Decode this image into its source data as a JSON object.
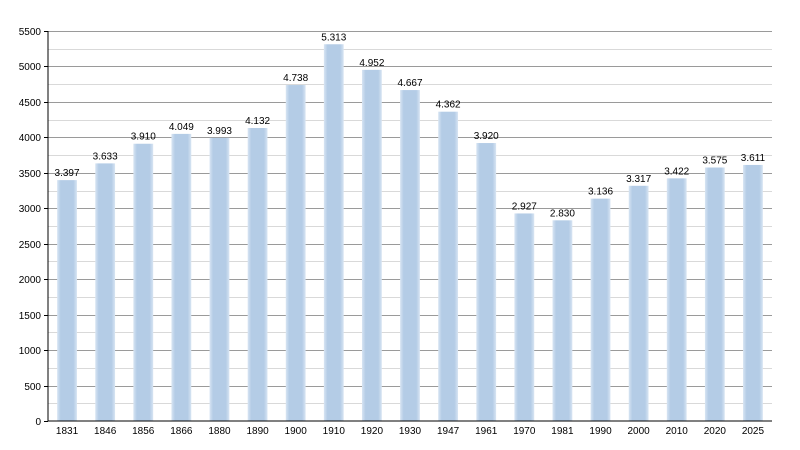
{
  "chart_data": {
    "type": "bar",
    "title": "",
    "xlabel": "",
    "ylabel": "",
    "categories": [
      "1831",
      "1846",
      "1856",
      "1866",
      "1880",
      "1890",
      "1900",
      "1910",
      "1920",
      "1930",
      "1947",
      "1961",
      "1970",
      "1981",
      "1990",
      "2000",
      "2010",
      "2020",
      "2025"
    ],
    "values": [
      3397,
      3633,
      3910,
      4049,
      3993,
      4132,
      4738,
      5313,
      4952,
      4667,
      4362,
      3920,
      2927,
      2830,
      3136,
      3317,
      3422,
      3575,
      3611
    ],
    "value_labels": [
      "3.397",
      "3.633",
      "3.910",
      "4.049",
      "3.993",
      "4.132",
      "4.738",
      "5.313",
      "4.952",
      "4.667",
      "4.362",
      "3.920",
      "2.927",
      "2.830",
      "3.136",
      "3.317",
      "3.422",
      "3.575",
      "3.611"
    ],
    "ylim": [
      0,
      5500
    ],
    "yticks": [
      0,
      500,
      1000,
      1500,
      2000,
      2500,
      3000,
      3500,
      4000,
      4500,
      5000,
      5500
    ],
    "minor_step": 250,
    "grid": true,
    "legend": "none",
    "bar_color": "#b4cce6",
    "bar_edge_color": "#d3e2f1"
  }
}
